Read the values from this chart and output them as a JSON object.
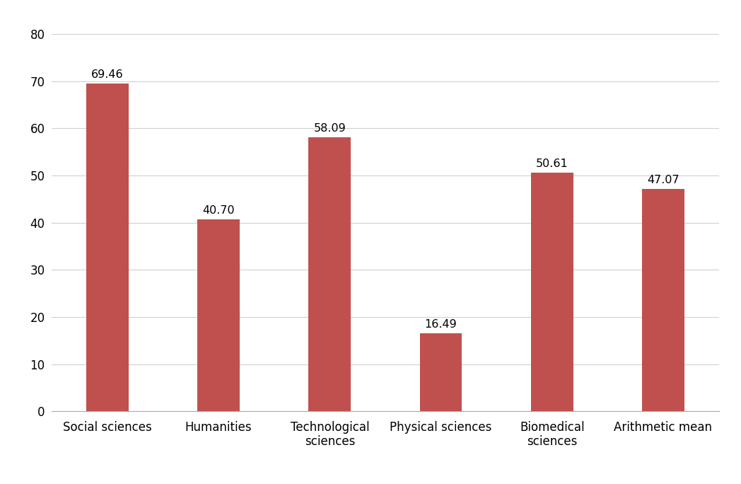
{
  "categories": [
    "Social sciences",
    "Humanities",
    "Technological\nsciences",
    "Physical sciences",
    "Biomedical\nsciences",
    "Arithmetic mean"
  ],
  "values": [
    69.46,
    40.7,
    58.09,
    16.49,
    50.61,
    47.07
  ],
  "bar_color": "#c0504d",
  "ylim": [
    0,
    80
  ],
  "yticks": [
    0,
    10,
    20,
    30,
    40,
    50,
    60,
    70,
    80
  ],
  "grid_color": "#d0d0d0",
  "background_color": "#ffffff",
  "tick_fontsize": 12,
  "value_fontsize": 11.5,
  "bar_width": 0.38,
  "figure_width": 10.48,
  "figure_height": 6.84,
  "dpi": 100
}
